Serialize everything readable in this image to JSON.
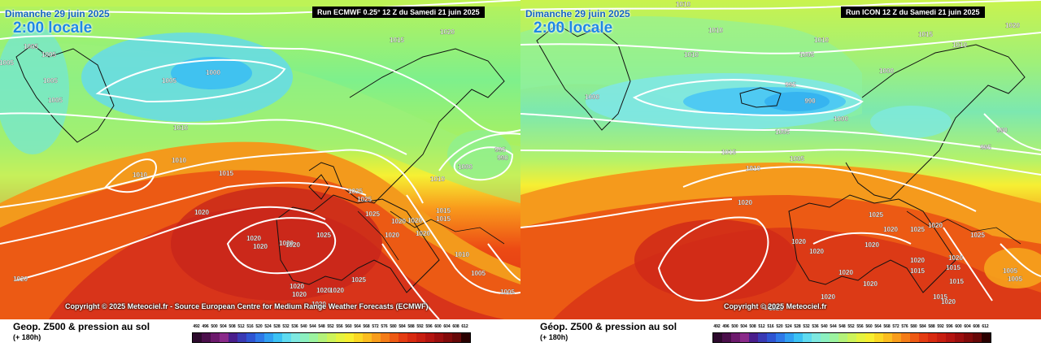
{
  "left": {
    "date": "Dimanche 29 juin 2025",
    "hour": "2:00 locale",
    "run": "Run ECMWF 0.25° 12 Z du Samedi 21 juin 2025",
    "copyright": "Copyright © 2025 Meteociel.fr - Source European Centre for Medium Range Weather Forecasts (ECMWF)",
    "variable": "Geop. Z500 & pression au sol",
    "lead": "(+ 180h)",
    "isobars": [
      {
        "label": "1005"
      },
      {
        "label": "1005"
      },
      {
        "label": "1005"
      },
      {
        "label": "1005"
      },
      {
        "label": "1005"
      },
      {
        "label": "1005"
      },
      {
        "label": "1000"
      },
      {
        "label": "1015"
      },
      {
        "label": "1020"
      },
      {
        "label": "1010"
      },
      {
        "label": "1010"
      },
      {
        "label": "1010"
      },
      {
        "label": "1015"
      },
      {
        "label": "1020"
      },
      {
        "label": "1025"
      },
      {
        "label": "1025"
      },
      {
        "label": "1025"
      },
      {
        "label": "1025"
      },
      {
        "label": "1020"
      },
      {
        "label": "1020"
      },
      {
        "label": "1025"
      },
      {
        "label": "1020"
      },
      {
        "label": "1020"
      },
      {
        "label": "1020"
      },
      {
        "label": "1020"
      },
      {
        "label": "1010"
      },
      {
        "label": "1015"
      },
      {
        "label": "1015"
      },
      {
        "label": "1000"
      },
      {
        "label": "995"
      },
      {
        "label": "990"
      },
      {
        "label": "1010"
      },
      {
        "label": "1005"
      },
      {
        "label": "1005"
      },
      {
        "label": "1020"
      },
      {
        "label": "1020"
      },
      {
        "label": "1020"
      },
      {
        "label": "1020"
      },
      {
        "label": "1020"
      },
      {
        "label": "1020"
      },
      {
        "label": "1020"
      },
      {
        "label": "1020"
      }
    ]
  },
  "right": {
    "date": "Dimanche 29 juin 2025",
    "hour": "2:00 locale",
    "run": "Run ICON 12 Z du Samedi 21 juin 2025",
    "copyright": "Copyright © 2025 Meteociel.fr",
    "variable": "Géop. Z500 & pression au sol",
    "lead": "(+ 180h)",
    "isobars": [
      {
        "label": "1010"
      },
      {
        "label": "1010"
      },
      {
        "label": "1010"
      },
      {
        "label": "1010"
      },
      {
        "label": "1015"
      },
      {
        "label": "1020"
      },
      {
        "label": "1005"
      },
      {
        "label": "1010"
      },
      {
        "label": "1000"
      },
      {
        "label": "1000"
      },
      {
        "label": "995"
      },
      {
        "label": "990"
      },
      {
        "label": "1000"
      },
      {
        "label": "1005"
      },
      {
        "label": "1010"
      },
      {
        "label": "1015"
      },
      {
        "label": "1005"
      },
      {
        "label": "990"
      },
      {
        "label": "995"
      },
      {
        "label": "1020"
      },
      {
        "label": "1025"
      },
      {
        "label": "1020"
      },
      {
        "label": "1020"
      },
      {
        "label": "1025"
      },
      {
        "label": "1020"
      },
      {
        "label": "1020"
      },
      {
        "label": "1020"
      },
      {
        "label": "1020"
      },
      {
        "label": "1020"
      },
      {
        "label": "1015"
      },
      {
        "label": "1015"
      },
      {
        "label": "1015"
      },
      {
        "label": "1020"
      },
      {
        "label": "1015"
      },
      {
        "label": "1025"
      },
      {
        "label": "1025"
      },
      {
        "label": "1020"
      },
      {
        "label": "1025"
      },
      {
        "label": "1020"
      },
      {
        "label": "1005"
      },
      {
        "label": "1005"
      },
      {
        "label": "1020"
      }
    ]
  },
  "scale": {
    "labels": [
      "492",
      "496",
      "500",
      "504",
      "508",
      "512",
      "516",
      "520",
      "524",
      "528",
      "532",
      "536",
      "540",
      "544",
      "548",
      "552",
      "556",
      "560",
      "564",
      "568",
      "572",
      "576",
      "580",
      "584",
      "588",
      "592",
      "596",
      "600",
      "604",
      "608",
      "612"
    ],
    "colors": [
      "#2d0a2d",
      "#4b0f4b",
      "#6d1a6d",
      "#8a2a8a",
      "#4a1e8c",
      "#3a3ab4",
      "#2f55d2",
      "#2f79e8",
      "#31a0f2",
      "#3cc2f4",
      "#5fdbf0",
      "#7ee8e0",
      "#8cf0c0",
      "#9cf3a0",
      "#b4f27a",
      "#cdf35a",
      "#e6f340",
      "#f7ef30",
      "#fbd824",
      "#fbbd20",
      "#f89d1c",
      "#f47c18",
      "#ee5a14",
      "#e43c12",
      "#d82a10",
      "#c81e10",
      "#b41410",
      "#9c0e0e",
      "#820a0a",
      "#660808",
      "#2a0000"
    ]
  }
}
